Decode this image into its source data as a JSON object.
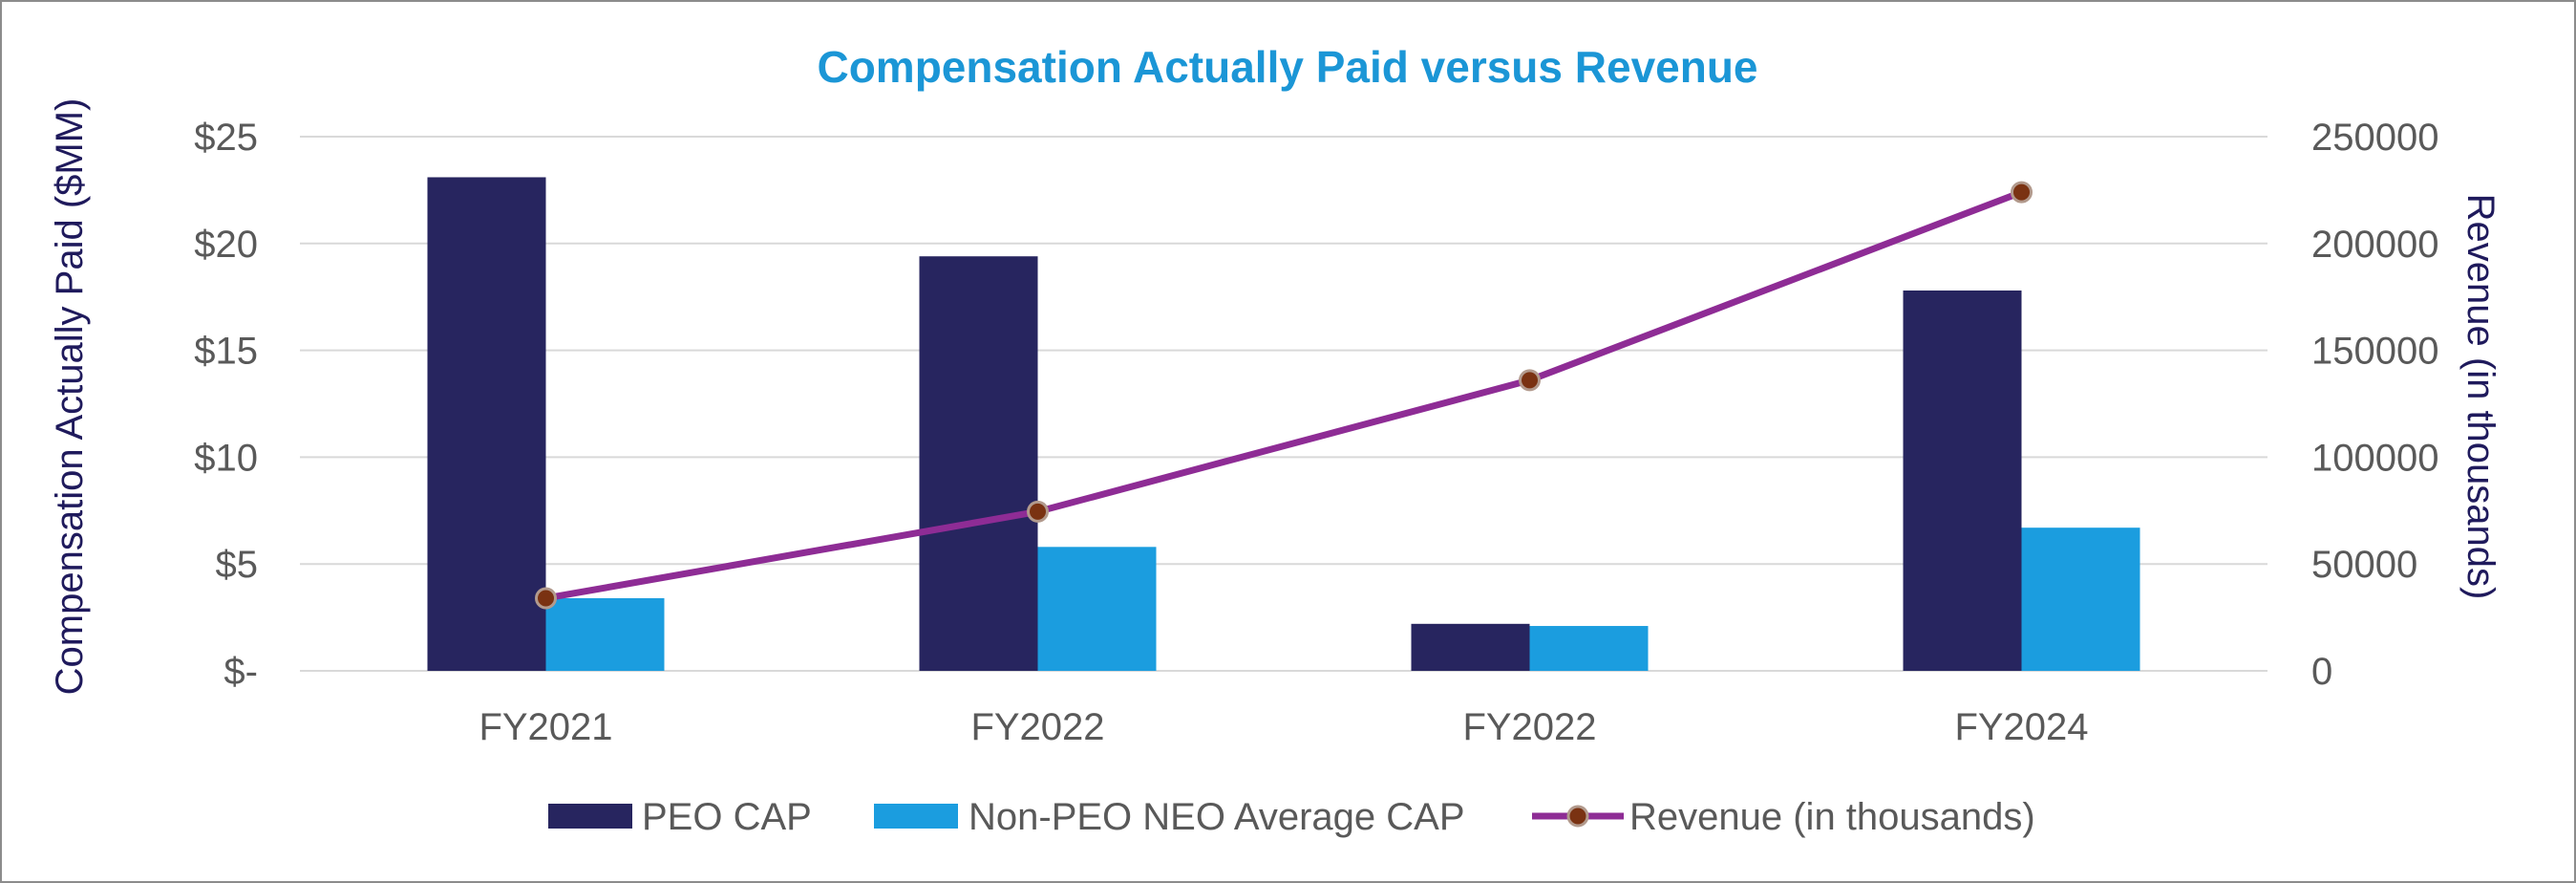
{
  "chart_data": {
    "type": "bar",
    "title": "Compensation Actually Paid versus Revenue",
    "categories": [
      "FY2021",
      "FY2022",
      "FY2022",
      "FY2024"
    ],
    "series": [
      {
        "name": "PEO CAP",
        "kind": "bar",
        "axis": "left",
        "color": "#27255f",
        "values": [
          23.1,
          19.4,
          2.2,
          17.8
        ]
      },
      {
        "name": "Non-PEO NEO Average CAP",
        "kind": "bar",
        "axis": "left",
        "color": "#1b9ddf",
        "values": [
          3.4,
          5.8,
          2.1,
          6.7
        ]
      },
      {
        "name": "Revenue (in thousands)",
        "kind": "line",
        "axis": "right",
        "color": "#8e2c95",
        "marker_color": "#7a3212",
        "values": [
          34000,
          74500,
          136000,
          224000
        ]
      }
    ],
    "ylabel": "Compensation Actually Paid ($MM)",
    "ylabel_right": "Revenue (in thousands)",
    "ylim": [
      0,
      25
    ],
    "ylim_right": [
      0,
      250000
    ],
    "yticks_left": [
      "$-",
      "$5",
      "$10",
      "$15",
      "$20",
      "$25"
    ],
    "yticks_right": [
      "0",
      "50000",
      "100000",
      "150000",
      "200000",
      "250000"
    ],
    "grid": true,
    "legend": "bottom-center"
  }
}
